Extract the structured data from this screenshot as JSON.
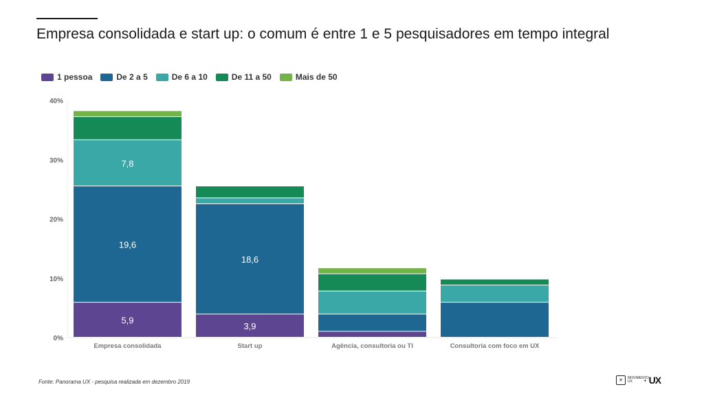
{
  "header": {
    "title": "Empresa consolidada e start up: o comum é entre 1 e 5 pesquisadores em tempo integral"
  },
  "footer": {
    "source": "Fonte: Panorama UX - pesquisa realizada em dezembro 2019",
    "logo_text": "MOVIMENTO UX",
    "logo_plus": "+",
    "logo_ux": "UX"
  },
  "chart_data": {
    "type": "bar",
    "stacked": true,
    "categories": [
      "Empresa consolidada",
      "Start up",
      "Agência, consultoria ou TI",
      "Consultoria com foco em UX"
    ],
    "series": [
      {
        "name": "1 pessoa",
        "color": "#5d4591",
        "values": [
          5.9,
          3.9,
          1.0,
          0.0
        ]
      },
      {
        "name": "De 2 a 5",
        "color": "#1e6793",
        "values": [
          19.6,
          18.6,
          2.9,
          5.9
        ]
      },
      {
        "name": "De 6 a 10",
        "color": "#3aa8a6",
        "values": [
          7.8,
          1.0,
          3.9,
          2.9
        ]
      },
      {
        "name": "De 11 a 50",
        "color": "#158a57",
        "values": [
          3.9,
          2.0,
          2.9,
          1.0
        ]
      },
      {
        "name": "Mais de 50",
        "color": "#74b24a",
        "values": [
          1.0,
          0.0,
          1.0,
          0.0
        ]
      }
    ],
    "data_labels": [
      {
        "category": 0,
        "series": 0,
        "text": "5,9"
      },
      {
        "category": 0,
        "series": 1,
        "text": "19,6"
      },
      {
        "category": 0,
        "series": 2,
        "text": "7,8"
      },
      {
        "category": 1,
        "series": 0,
        "text": "3,9"
      },
      {
        "category": 1,
        "series": 1,
        "text": "18,6"
      }
    ],
    "yticks": [
      "0%",
      "10%",
      "20%",
      "30%",
      "40%"
    ],
    "ylim": [
      0,
      40
    ],
    "grid": false,
    "legend_position": "top-left"
  }
}
